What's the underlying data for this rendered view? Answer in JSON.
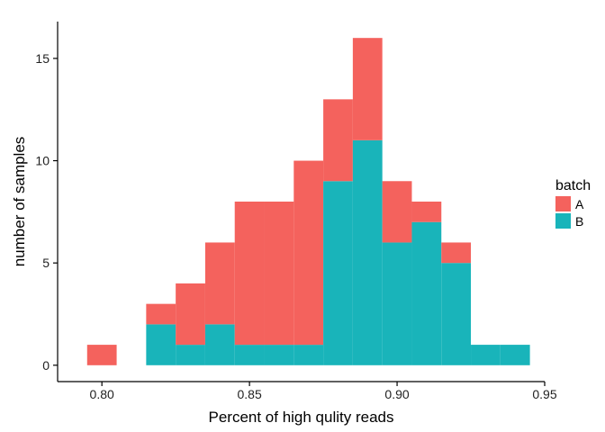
{
  "chart_data": {
    "type": "bar",
    "stacked": true,
    "xlabel": "Percent of high qulity reads",
    "ylabel": "number of samples",
    "xlim": [
      0.785,
      0.95
    ],
    "ylim": [
      -0.8,
      16.8
    ],
    "x_ticks": [
      0.8,
      0.85,
      0.9,
      0.95
    ],
    "x_tick_labels": [
      "0.80",
      "0.85",
      "0.90",
      "0.95"
    ],
    "y_ticks": [
      0,
      5,
      10,
      15
    ],
    "y_tick_labels": [
      "0",
      "5",
      "10",
      "15"
    ],
    "bin_width": 0.01,
    "bin_centers": [
      0.8,
      0.81,
      0.82,
      0.83,
      0.84,
      0.85,
      0.86,
      0.87,
      0.88,
      0.89,
      0.9,
      0.91,
      0.92,
      0.93,
      0.94
    ],
    "series": [
      {
        "name": "B",
        "color": "#19B4BA",
        "values": [
          0,
          0,
          2,
          1,
          2,
          1,
          1,
          1,
          9,
          11,
          6,
          7,
          5,
          1,
          1
        ]
      },
      {
        "name": "A",
        "color": "#F4625D",
        "values": [
          1,
          0,
          1,
          3,
          4,
          7,
          7,
          9,
          4,
          5,
          3,
          1,
          1,
          0,
          0
        ]
      }
    ],
    "grid": false,
    "legend": {
      "title": "batch",
      "position": "right",
      "entries": [
        {
          "label": "A",
          "color": "#F4625D"
        },
        {
          "label": "B",
          "color": "#19B4BA"
        }
      ]
    }
  }
}
